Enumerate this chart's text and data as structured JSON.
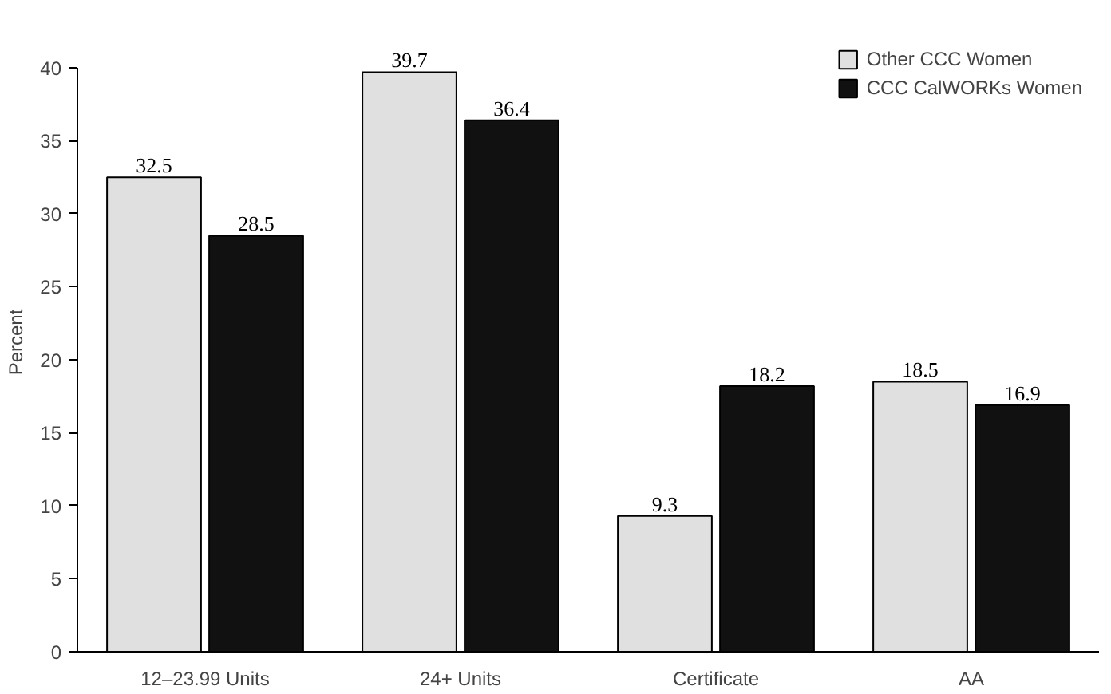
{
  "chart_data": {
    "type": "bar",
    "ylabel": "Percent",
    "categories": [
      "12–23.99 Units",
      "24+ Units",
      "Certificate",
      "AA"
    ],
    "series": [
      {
        "name": "Other CCC Women",
        "color": "#e0e0e0",
        "values": [
          32.5,
          39.7,
          9.3,
          18.5
        ]
      },
      {
        "name": "CCC CalWORKs Women",
        "color": "#111111",
        "values": [
          28.5,
          36.4,
          18.2,
          16.9
        ]
      }
    ],
    "ylim": [
      0,
      40
    ],
    "yticks": [
      0,
      5,
      10,
      15,
      20,
      25,
      30,
      35,
      40
    ],
    "data_labels": true,
    "grid": false,
    "legend": "top right"
  }
}
